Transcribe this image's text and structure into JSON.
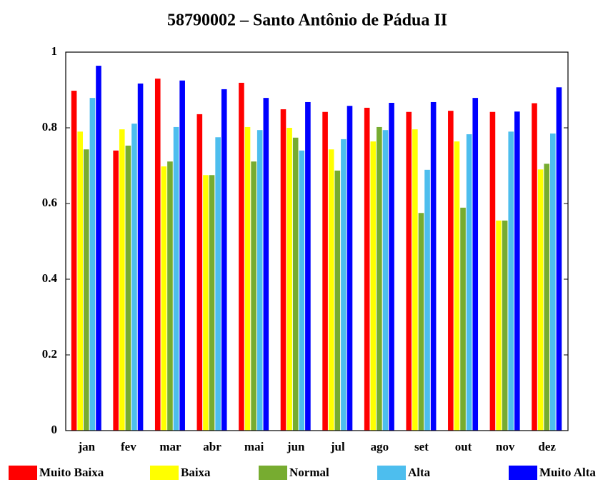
{
  "chart_data": {
    "type": "bar",
    "title": "58790002 – Santo Antônio de Pádua II",
    "categories": [
      "jan",
      "fev",
      "mar",
      "abr",
      "mai",
      "jun",
      "jul",
      "ago",
      "set",
      "out",
      "nov",
      "dez"
    ],
    "series": [
      {
        "name": "Muito Baixa",
        "color": "#ff0000",
        "values": [
          0.898,
          0.74,
          0.93,
          0.836,
          0.919,
          0.849,
          0.842,
          0.853,
          0.842,
          0.845,
          0.842,
          0.865
        ]
      },
      {
        "name": "Baixa",
        "color": "#ffff00",
        "values": [
          0.79,
          0.796,
          0.698,
          0.675,
          0.802,
          0.8,
          0.743,
          0.764,
          0.796,
          0.764,
          0.555,
          0.69
        ]
      },
      {
        "name": "Normal",
        "color": "#77ac30",
        "values": [
          0.743,
          0.753,
          0.711,
          0.675,
          0.711,
          0.774,
          0.687,
          0.802,
          0.575,
          0.589,
          0.555,
          0.705
        ]
      },
      {
        "name": "Alta",
        "color": "#4dbeee",
        "values": [
          0.879,
          0.811,
          0.802,
          0.775,
          0.794,
          0.74,
          0.77,
          0.794,
          0.689,
          0.783,
          0.79,
          0.785
        ]
      },
      {
        "name": "Muito Alta",
        "color": "#0000ff",
        "values": [
          0.964,
          0.917,
          0.925,
          0.902,
          0.879,
          0.868,
          0.858,
          0.866,
          0.868,
          0.879,
          0.843,
          0.907
        ]
      }
    ],
    "ylim": [
      0,
      1
    ],
    "yticks": [
      0,
      0.2,
      0.4,
      0.6,
      0.8,
      1
    ],
    "legend": "bottom"
  }
}
